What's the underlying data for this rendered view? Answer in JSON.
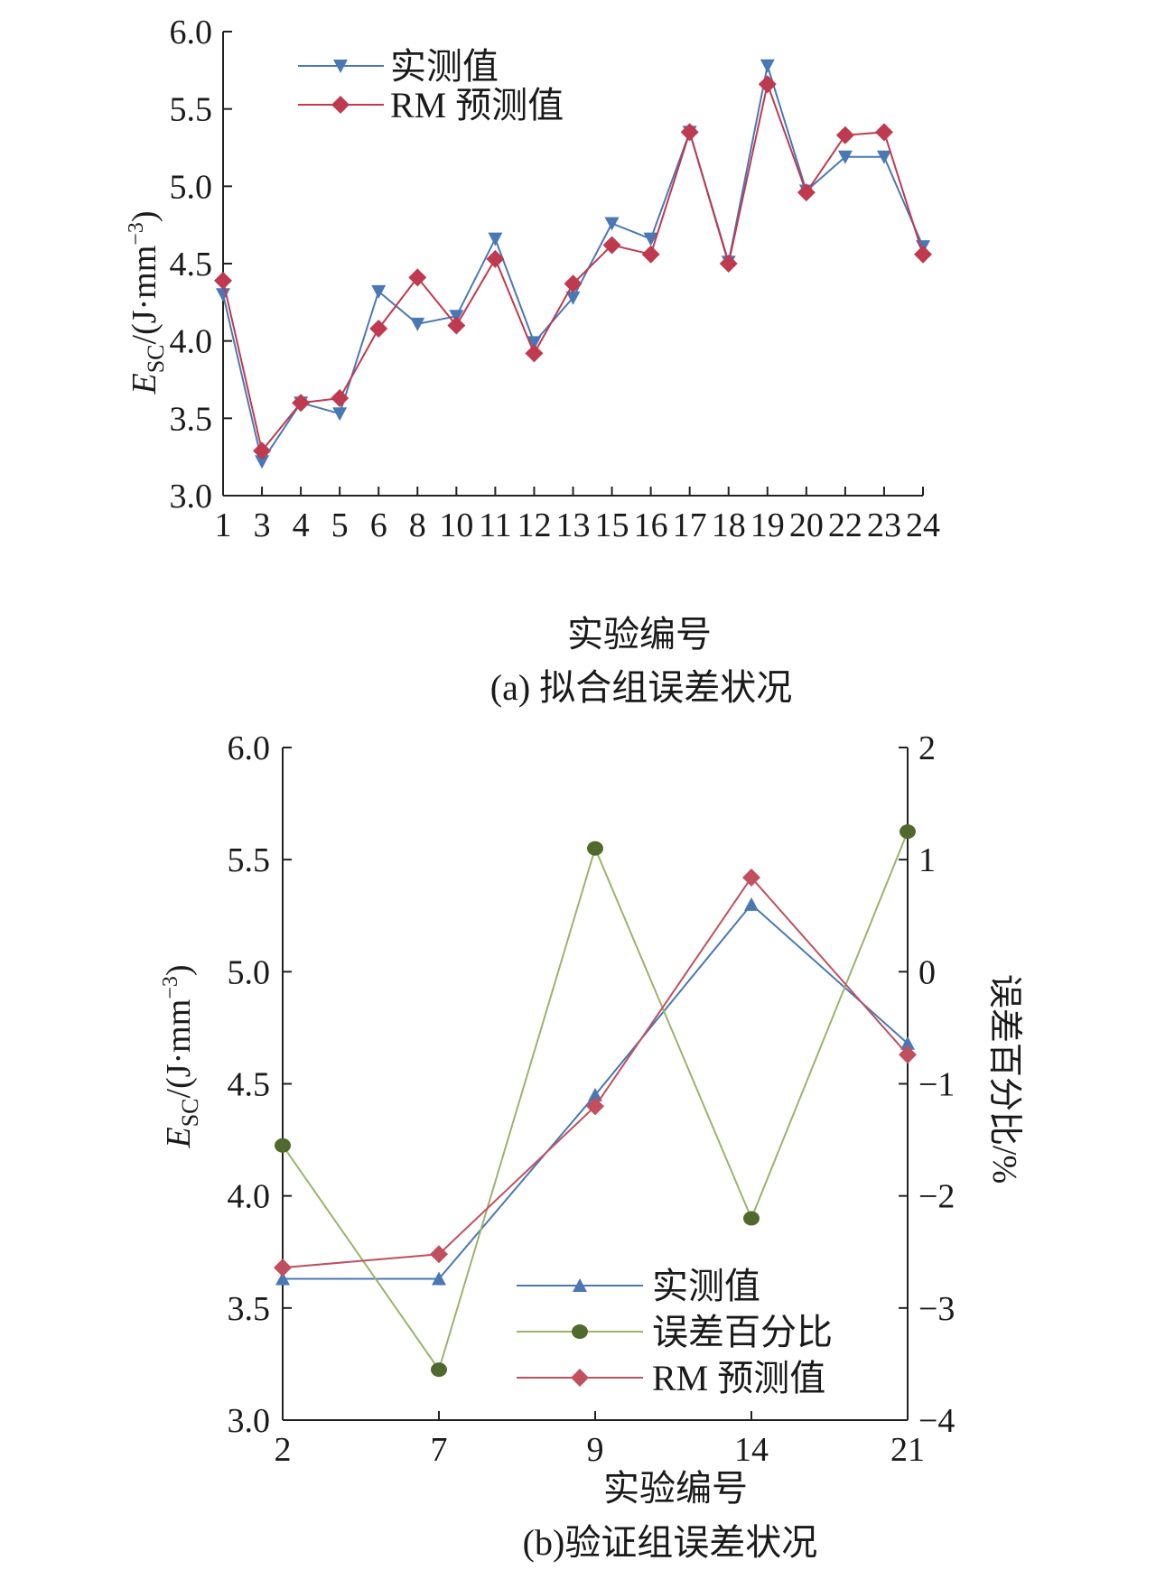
{
  "chart_data": [
    {
      "id": "a",
      "type": "line",
      "caption": "(a) 拟合组误差状况",
      "xlabel": "实验编号",
      "ylabel_main": "E",
      "ylabel_sub": "SC",
      "ylabel_rest": "/(J·mm",
      "ylabel_sup": "−3",
      "ylabel_close": ")",
      "categories": [
        "1",
        "3",
        "4",
        "5",
        "6",
        "8",
        "10",
        "11",
        "12",
        "13",
        "15",
        "16",
        "17",
        "18",
        "19",
        "20",
        "22",
        "23",
        "24"
      ],
      "ylim": [
        3.0,
        6.0
      ],
      "yticks": [
        "3.0",
        "3.5",
        "4.0",
        "4.5",
        "5.0",
        "5.5",
        "6.0"
      ],
      "legend_position": "top-left",
      "series": [
        {
          "name": "实测值",
          "color": "#4a78b5",
          "marker": "triangle-down",
          "values": [
            4.3,
            3.22,
            3.6,
            3.53,
            4.32,
            4.11,
            4.16,
            4.66,
            3.99,
            4.28,
            4.76,
            4.66,
            5.35,
            4.51,
            5.78,
            4.97,
            5.19,
            5.19,
            4.61
          ]
        },
        {
          "name": "RM 预测值",
          "color": "#bf3a4f",
          "marker": "diamond",
          "values": [
            4.39,
            3.29,
            3.6,
            3.63,
            4.08,
            4.41,
            4.1,
            4.53,
            3.92,
            4.37,
            4.62,
            4.56,
            5.35,
            4.5,
            5.66,
            4.96,
            5.33,
            5.35,
            4.56
          ]
        }
      ]
    },
    {
      "id": "b",
      "type": "line",
      "caption": "(b)验证组误差状况",
      "xlabel": "实验编号",
      "ylabel_main": "E",
      "ylabel_sub": "SC",
      "ylabel_rest": "/(J·mm",
      "ylabel_sup": "−3",
      "ylabel_close": ")",
      "ylabel_right": "误差百分比/%",
      "categories": [
        "2",
        "7",
        "9",
        "14",
        "21"
      ],
      "ylim": [
        3.0,
        6.0
      ],
      "yticks": [
        "3.0",
        "3.5",
        "4.0",
        "4.5",
        "5.0",
        "5.5",
        "6.0"
      ],
      "ylim_right": [
        -4,
        2
      ],
      "yticks_right": [
        "−4",
        "−3",
        "−2",
        "−1",
        "0",
        "1",
        "2"
      ],
      "legend_position": "bottom-right",
      "series": [
        {
          "name": "实测值",
          "color": "#4a78b5",
          "marker": "triangle-up",
          "axis": "left",
          "values": [
            3.63,
            3.63,
            4.45,
            5.3,
            4.68
          ]
        },
        {
          "name": "误差百分比",
          "color": "#9bb36b",
          "marker": "circle",
          "marker_color": "#4f6a2c",
          "axis": "right",
          "values": [
            -1.55,
            -3.55,
            1.1,
            -2.2,
            1.25
          ]
        },
        {
          "name": "RM 预测值",
          "color": "#c0505e",
          "marker": "diamond",
          "axis": "left",
          "values": [
            3.68,
            3.74,
            4.4,
            5.42,
            4.63
          ]
        }
      ]
    }
  ]
}
